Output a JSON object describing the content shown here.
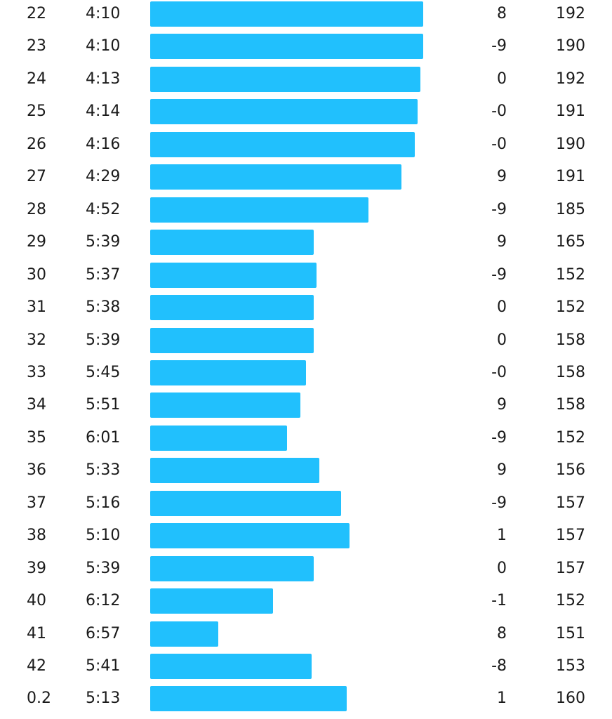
{
  "splits": [
    {
      "km": "22",
      "pace": "4:10",
      "pace_fraction": 1.0,
      "elevation": "8",
      "heart_rate": "192"
    },
    {
      "km": "23",
      "pace": "4:10",
      "pace_fraction": 1.0,
      "elevation": "-9",
      "heart_rate": "190"
    },
    {
      "km": "24",
      "pace": "4:13",
      "pace_fraction": 0.99,
      "elevation": "0",
      "heart_rate": "192"
    },
    {
      "km": "25",
      "pace": "4:14",
      "pace_fraction": 0.98,
      "elevation": "-0",
      "heart_rate": "191"
    },
    {
      "km": "26",
      "pace": "4:16",
      "pace_fraction": 0.97,
      "elevation": "-0",
      "heart_rate": "190"
    },
    {
      "km": "27",
      "pace": "4:29",
      "pace_fraction": 0.92,
      "elevation": "9",
      "heart_rate": "191"
    },
    {
      "km": "28",
      "pace": "4:52",
      "pace_fraction": 0.8,
      "elevation": "-9",
      "heart_rate": "185"
    },
    {
      "km": "29",
      "pace": "5:39",
      "pace_fraction": 0.6,
      "elevation": "9",
      "heart_rate": "165"
    },
    {
      "km": "30",
      "pace": "5:37",
      "pace_fraction": 0.61,
      "elevation": "-9",
      "heart_rate": "152"
    },
    {
      "km": "31",
      "pace": "5:38",
      "pace_fraction": 0.6,
      "elevation": "0",
      "heart_rate": "152"
    },
    {
      "km": "32",
      "pace": "5:39",
      "pace_fraction": 0.6,
      "elevation": "0",
      "heart_rate": "158"
    },
    {
      "km": "33",
      "pace": "5:45",
      "pace_fraction": 0.57,
      "elevation": "-0",
      "heart_rate": "158"
    },
    {
      "km": "34",
      "pace": "5:51",
      "pace_fraction": 0.55,
      "elevation": "9",
      "heart_rate": "158"
    },
    {
      "km": "35",
      "pace": "6:01",
      "pace_fraction": 0.5,
      "elevation": "-9",
      "heart_rate": "152"
    },
    {
      "km": "36",
      "pace": "5:33",
      "pace_fraction": 0.62,
      "elevation": "9",
      "heart_rate": "156"
    },
    {
      "km": "37",
      "pace": "5:16",
      "pace_fraction": 0.7,
      "elevation": "-9",
      "heart_rate": "157"
    },
    {
      "km": "38",
      "pace": "5:10",
      "pace_fraction": 0.73,
      "elevation": "1",
      "heart_rate": "157"
    },
    {
      "km": "39",
      "pace": "5:39",
      "pace_fraction": 0.6,
      "elevation": "0",
      "heart_rate": "157"
    },
    {
      "km": "40",
      "pace": "6:12",
      "pace_fraction": 0.45,
      "elevation": "-1",
      "heart_rate": "152"
    },
    {
      "km": "41",
      "pace": "6:57",
      "pace_fraction": 0.25,
      "elevation": "8",
      "heart_rate": "151"
    },
    {
      "km": "42",
      "pace": "5:41",
      "pace_fraction": 0.59,
      "elevation": "-8",
      "heart_rate": "153"
    },
    {
      "km": "0.2",
      "pace": "5:13",
      "pace_fraction": 0.72,
      "elevation": "1",
      "heart_rate": "160"
    }
  ],
  "colors": {
    "pace_bar": "#21c0fd",
    "text": "#1a1a1a",
    "background": "#ffffff"
  }
}
